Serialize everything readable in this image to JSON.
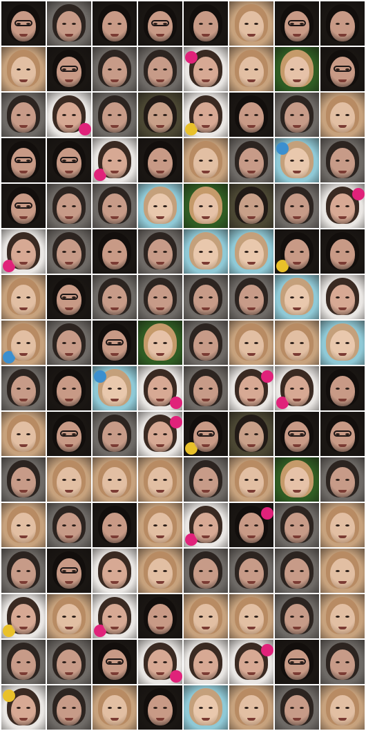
{
  "grid": {
    "columns": 8,
    "rows": 16,
    "palette": {
      "dark": {
        "bg": "#1a1613",
        "hair": "#120e0c",
        "face": "#c89a86"
      },
      "blonde": {
        "bg": "#c7a27d",
        "hair": "#b88b63",
        "face": "#e2bfa3"
      },
      "grey": {
        "bg": "#6e6a66",
        "hair": "#2c2420",
        "face": "#c79b88"
      },
      "white": {
        "bg": "#e9e6e3",
        "hair": "#3a2a22",
        "face": "#d7a994"
      },
      "green": {
        "bg": "#2f5c23",
        "hair": "#c59a6a",
        "face": "#e6c2a8"
      },
      "cyan": {
        "bg": "#8fc9d6",
        "hair": "#c4a07b",
        "face": "#e9c8ad"
      },
      "olive": {
        "bg": "#4b4733",
        "hair": "#211a16",
        "face": "#c8a089"
      }
    },
    "accents": {
      "magenta": "#e0227a",
      "yellow": "#e9c12a",
      "blue": "#3b8fcf"
    },
    "tiles": [
      {
        "tone": "dark",
        "glasses": true
      },
      {
        "tone": "grey",
        "glasses": false
      },
      {
        "tone": "dark",
        "glasses": false
      },
      {
        "tone": "dark",
        "glasses": true
      },
      {
        "tone": "dark",
        "glasses": false
      },
      {
        "tone": "blonde",
        "glasses": false
      },
      {
        "tone": "dark",
        "glasses": true
      },
      {
        "tone": "dark",
        "glasses": false
      },
      {
        "tone": "blonde",
        "glasses": false
      },
      {
        "tone": "dark",
        "glasses": true
      },
      {
        "tone": "grey",
        "glasses": false
      },
      {
        "tone": "grey",
        "glasses": false
      },
      {
        "tone": "white",
        "glasses": false,
        "accent": "magenta"
      },
      {
        "tone": "blonde",
        "glasses": false
      },
      {
        "tone": "green",
        "glasses": false
      },
      {
        "tone": "dark",
        "glasses": true
      },
      {
        "tone": "grey",
        "glasses": false
      },
      {
        "tone": "white",
        "glasses": false,
        "accent": "magenta"
      },
      {
        "tone": "grey",
        "glasses": false
      },
      {
        "tone": "olive",
        "glasses": false
      },
      {
        "tone": "white",
        "glasses": false,
        "accent": "yellow"
      },
      {
        "tone": "dark",
        "glasses": false
      },
      {
        "tone": "grey",
        "glasses": false
      },
      {
        "tone": "blonde",
        "glasses": false
      },
      {
        "tone": "dark",
        "glasses": true
      },
      {
        "tone": "dark",
        "glasses": true
      },
      {
        "tone": "white",
        "glasses": false,
        "accent": "magenta"
      },
      {
        "tone": "dark",
        "glasses": false
      },
      {
        "tone": "blonde",
        "glasses": false
      },
      {
        "tone": "grey",
        "glasses": false
      },
      {
        "tone": "cyan",
        "glasses": false,
        "accent": "blue"
      },
      {
        "tone": "grey",
        "glasses": false
      },
      {
        "tone": "dark",
        "glasses": true
      },
      {
        "tone": "grey",
        "glasses": false
      },
      {
        "tone": "grey",
        "glasses": false
      },
      {
        "tone": "cyan",
        "glasses": false
      },
      {
        "tone": "green",
        "glasses": false
      },
      {
        "tone": "olive",
        "glasses": false
      },
      {
        "tone": "grey",
        "glasses": false
      },
      {
        "tone": "white",
        "glasses": false,
        "accent": "magenta"
      },
      {
        "tone": "white",
        "glasses": false,
        "accent": "magenta"
      },
      {
        "tone": "grey",
        "glasses": false
      },
      {
        "tone": "dark",
        "glasses": false
      },
      {
        "tone": "grey",
        "glasses": false
      },
      {
        "tone": "cyan",
        "glasses": false
      },
      {
        "tone": "cyan",
        "glasses": false
      },
      {
        "tone": "dark",
        "glasses": false,
        "accent": "yellow"
      },
      {
        "tone": "dark",
        "glasses": false
      },
      {
        "tone": "blonde",
        "glasses": false
      },
      {
        "tone": "dark",
        "glasses": true
      },
      {
        "tone": "grey",
        "glasses": false
      },
      {
        "tone": "grey",
        "glasses": false
      },
      {
        "tone": "grey",
        "glasses": false
      },
      {
        "tone": "grey",
        "glasses": false
      },
      {
        "tone": "cyan",
        "glasses": false
      },
      {
        "tone": "white",
        "glasses": false
      },
      {
        "tone": "blonde",
        "glasses": false,
        "accent": "blue"
      },
      {
        "tone": "grey",
        "glasses": false
      },
      {
        "tone": "dark",
        "glasses": true
      },
      {
        "tone": "green",
        "glasses": false
      },
      {
        "tone": "grey",
        "glasses": false
      },
      {
        "tone": "blonde",
        "glasses": false
      },
      {
        "tone": "blonde",
        "glasses": false
      },
      {
        "tone": "cyan",
        "glasses": false
      },
      {
        "tone": "grey",
        "glasses": false
      },
      {
        "tone": "dark",
        "glasses": false
      },
      {
        "tone": "cyan",
        "glasses": false,
        "accent": "blue"
      },
      {
        "tone": "white",
        "glasses": false,
        "accent": "magenta"
      },
      {
        "tone": "grey",
        "glasses": false
      },
      {
        "tone": "white",
        "glasses": false,
        "accent": "magenta"
      },
      {
        "tone": "white",
        "glasses": false,
        "accent": "magenta"
      },
      {
        "tone": "dark",
        "glasses": false
      },
      {
        "tone": "blonde",
        "glasses": false
      },
      {
        "tone": "dark",
        "glasses": true
      },
      {
        "tone": "grey",
        "glasses": false
      },
      {
        "tone": "white",
        "glasses": false,
        "accent": "magenta"
      },
      {
        "tone": "dark",
        "glasses": true,
        "accent": "yellow"
      },
      {
        "tone": "olive",
        "glasses": false
      },
      {
        "tone": "dark",
        "glasses": true
      },
      {
        "tone": "dark",
        "glasses": true
      },
      {
        "tone": "grey",
        "glasses": false
      },
      {
        "tone": "blonde",
        "glasses": false
      },
      {
        "tone": "blonde",
        "glasses": false
      },
      {
        "tone": "blonde",
        "glasses": false
      },
      {
        "tone": "grey",
        "glasses": false
      },
      {
        "tone": "blonde",
        "glasses": false
      },
      {
        "tone": "green",
        "glasses": false
      },
      {
        "tone": "grey",
        "glasses": false
      },
      {
        "tone": "blonde",
        "glasses": false
      },
      {
        "tone": "grey",
        "glasses": false
      },
      {
        "tone": "dark",
        "glasses": false
      },
      {
        "tone": "blonde",
        "glasses": false
      },
      {
        "tone": "white",
        "glasses": false,
        "accent": "magenta"
      },
      {
        "tone": "dark",
        "glasses": false,
        "accent": "magenta"
      },
      {
        "tone": "grey",
        "glasses": false
      },
      {
        "tone": "blonde",
        "glasses": false
      },
      {
        "tone": "grey",
        "glasses": false
      },
      {
        "tone": "dark",
        "glasses": true
      },
      {
        "tone": "white",
        "glasses": false
      },
      {
        "tone": "blonde",
        "glasses": false
      },
      {
        "tone": "grey",
        "glasses": false
      },
      {
        "tone": "grey",
        "glasses": false
      },
      {
        "tone": "grey",
        "glasses": false
      },
      {
        "tone": "blonde",
        "glasses": false
      },
      {
        "tone": "white",
        "glasses": false,
        "accent": "yellow"
      },
      {
        "tone": "blonde",
        "glasses": false
      },
      {
        "tone": "white",
        "glasses": false,
        "accent": "magenta"
      },
      {
        "tone": "dark",
        "glasses": false
      },
      {
        "tone": "blonde",
        "glasses": false
      },
      {
        "tone": "blonde",
        "glasses": false
      },
      {
        "tone": "grey",
        "glasses": false
      },
      {
        "tone": "blonde",
        "glasses": false
      },
      {
        "tone": "grey",
        "glasses": false
      },
      {
        "tone": "grey",
        "glasses": false
      },
      {
        "tone": "dark",
        "glasses": true
      },
      {
        "tone": "white",
        "glasses": false,
        "accent": "magenta"
      },
      {
        "tone": "white",
        "glasses": false
      },
      {
        "tone": "white",
        "glasses": false,
        "accent": "magenta"
      },
      {
        "tone": "dark",
        "glasses": true
      },
      {
        "tone": "grey",
        "glasses": false
      },
      {
        "tone": "white",
        "glasses": false,
        "accent": "yellow"
      },
      {
        "tone": "grey",
        "glasses": false
      },
      {
        "tone": "blonde",
        "glasses": false
      },
      {
        "tone": "dark",
        "glasses": false
      },
      {
        "tone": "cyan",
        "glasses": false
      },
      {
        "tone": "blonde",
        "glasses": false
      },
      {
        "tone": "grey",
        "glasses": false
      },
      {
        "tone": "blonde",
        "glasses": false
      }
    ]
  }
}
